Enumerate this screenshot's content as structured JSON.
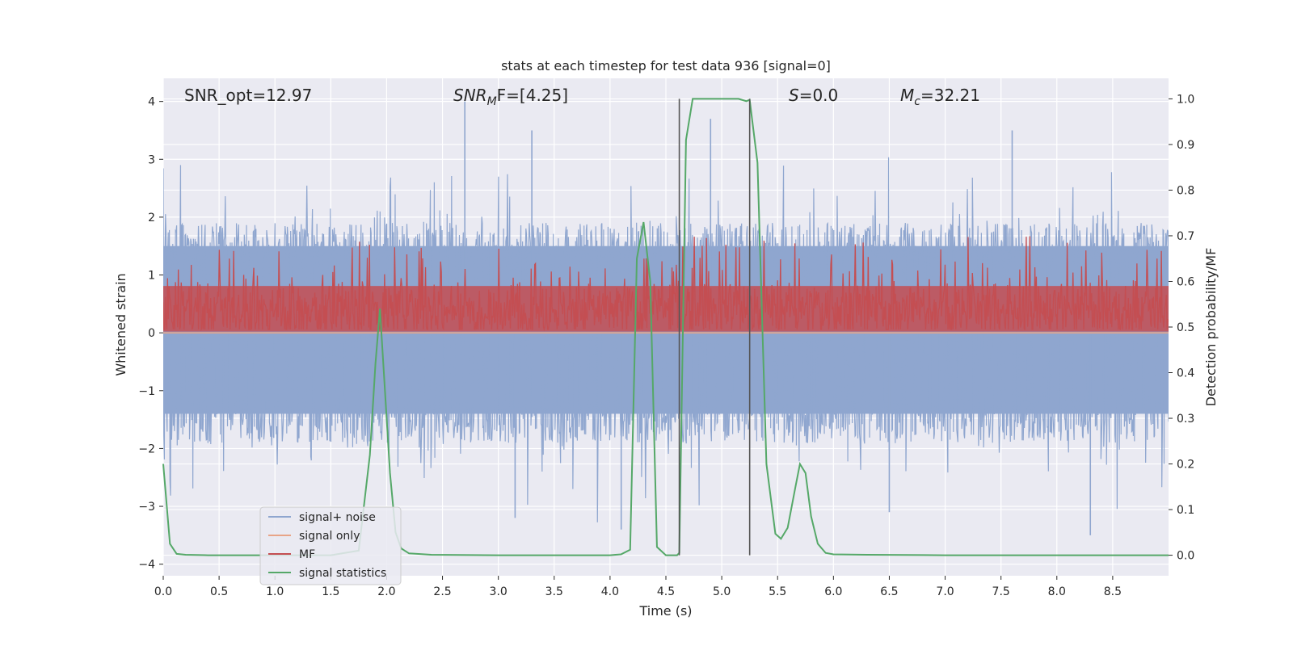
{
  "chart_data": {
    "type": "line",
    "title": "stats at each timestep for test data 936 [signal=0]",
    "xlabel": "Time (s)",
    "ylabel_left": "Whitened strain",
    "ylabel_right": "Detection probability/MF",
    "xlim": [
      0.0,
      9.0
    ],
    "ylim_left": [
      -4.2,
      4.4
    ],
    "ylim_right": [
      -0.045,
      1.045
    ],
    "x_ticks": [
      "0.0",
      "0.5",
      "1.0",
      "1.5",
      "2.0",
      "2.5",
      "3.0",
      "3.5",
      "4.0",
      "4.5",
      "5.0",
      "5.5",
      "6.0",
      "6.5",
      "7.0",
      "7.5",
      "8.0",
      "8.5"
    ],
    "y_ticks_left": [
      "−4",
      "−3",
      "−2",
      "−1",
      "0",
      "1",
      "2",
      "3",
      "4"
    ],
    "y_ticks_right": [
      "0.0",
      "0.1",
      "0.2",
      "0.3",
      "0.4",
      "0.5",
      "0.6",
      "0.7",
      "0.8",
      "0.9",
      "1.0"
    ],
    "grid": true,
    "annotations": {
      "snr_opt": "SNR_opt=12.97",
      "snr_mf": "SNR",
      "snr_mf_sub": "M",
      "snr_mf_rest": "F=[4.25]",
      "s_var": "S",
      "s_rest": "=0.0",
      "mc_var": "M",
      "mc_sub": "c",
      "mc_rest": "=32.21"
    },
    "vlines": [
      4.62,
      5.25
    ],
    "legend": {
      "position": "lower-left",
      "entries": [
        "signal+ noise",
        "signal only",
        "MF",
        "signal statistics"
      ]
    },
    "colors": {
      "signal_noise": "#8fa6cf",
      "signal_only": "#e8a487",
      "mf": "#c44e52",
      "signal_statistics": "#55a868",
      "background": "#eaeaf2",
      "vline": "#555555"
    },
    "series": [
      {
        "name": "signal+ noise",
        "axis": "left",
        "note_type": "noise",
        "envelope_band": [
          -1.4,
          1.5
        ],
        "peaks_approx": [
          [
            2.7,
            4.0
          ],
          [
            3.3,
            3.5
          ],
          [
            4.9,
            3.7
          ],
          [
            7.6,
            3.5
          ],
          [
            4.1,
            -3.4
          ],
          [
            6.5,
            -3.1
          ],
          [
            3.15,
            -3.2
          ],
          [
            8.3,
            -3.5
          ]
        ]
      },
      {
        "name": "signal only",
        "axis": "left",
        "x": [
          0.0,
          9.0
        ],
        "y": [
          0.0,
          0.0
        ]
      },
      {
        "name": "MF",
        "axis": "right",
        "band": [
          0.49,
          0.59
        ]
      },
      {
        "name": "signal statistics",
        "axis": "right",
        "x": [
          0.0,
          0.06,
          0.12,
          0.2,
          0.4,
          1.0,
          1.5,
          1.75,
          1.85,
          1.9,
          1.94,
          1.98,
          2.03,
          2.08,
          2.13,
          2.2,
          2.4,
          3.0,
          4.0,
          4.1,
          4.18,
          4.24,
          4.3,
          4.36,
          4.42,
          4.5,
          4.6,
          4.62,
          4.68,
          4.74,
          4.8,
          5.0,
          5.15,
          5.22,
          5.25,
          5.32,
          5.4,
          5.48,
          5.53,
          5.59,
          5.66,
          5.7,
          5.75,
          5.8,
          5.86,
          5.93,
          6.0,
          6.3,
          7.0,
          8.0,
          9.0
        ],
        "y": [
          0.2,
          0.025,
          0.003,
          0.001,
          0.0,
          0.0,
          0.0,
          0.01,
          0.22,
          0.42,
          0.54,
          0.38,
          0.18,
          0.05,
          0.015,
          0.004,
          0.001,
          0.0,
          0.0,
          0.002,
          0.012,
          0.65,
          0.73,
          0.6,
          0.018,
          0.0,
          0.0,
          0.005,
          0.91,
          1.0,
          1.0,
          1.0,
          1.0,
          0.995,
          0.998,
          0.86,
          0.2,
          0.047,
          0.036,
          0.06,
          0.15,
          0.2,
          0.18,
          0.085,
          0.025,
          0.005,
          0.002,
          0.001,
          0.0,
          0.0,
          0.0
        ]
      }
    ]
  }
}
